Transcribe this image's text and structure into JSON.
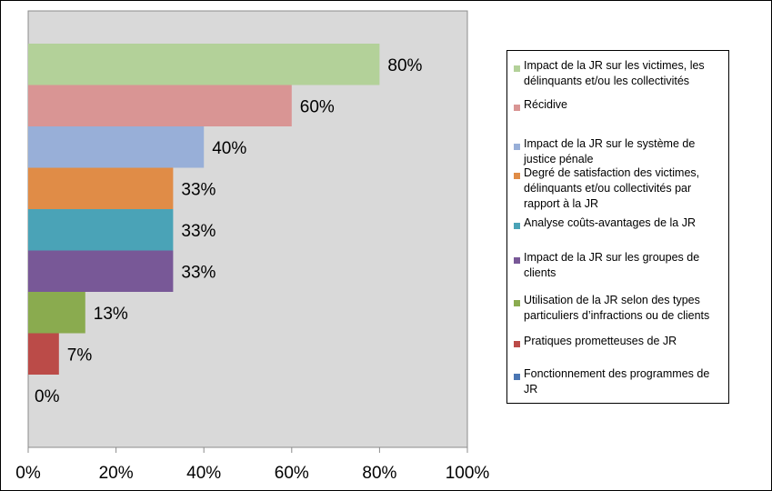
{
  "chart_data": {
    "type": "bar",
    "orientation": "horizontal",
    "categories": [
      "Impact de la JR sur les victimes, les délinquants et/ou les collectivités",
      "Récidive",
      "Impact de la JR sur le système de justice pénale",
      "Degré de satisfaction des victimes, délinquants et/ou collectivités par rapport à la JR",
      "Analyse coûts-avantages de la JR",
      "Impact de la JR sur les groupes de clients",
      "Utilisation de la JR selon des types particuliers d’infractions ou de clients",
      "Pratiques prometteuses de JR",
      "Fonctionnement des programmes de JR"
    ],
    "values": [
      80,
      60,
      40,
      33,
      33,
      33,
      13,
      7,
      0
    ],
    "data_labels": [
      "80%",
      "60%",
      "40%",
      "33%",
      "33%",
      "33%",
      "13%",
      "7%",
      "0%"
    ],
    "colors": [
      "#b3d199",
      "#d99594",
      "#98afd8",
      "#e08c47",
      "#4aa3b7",
      "#785897",
      "#8aab4f",
      "#bb4b48",
      "#4a76b3"
    ],
    "xlim": [
      0,
      100
    ],
    "x_ticks": [
      "0%",
      "20%",
      "40%",
      "60%",
      "80%",
      "100%"
    ],
    "plot_background": "#d9d9d9",
    "grid": false,
    "legend_position": "right"
  }
}
